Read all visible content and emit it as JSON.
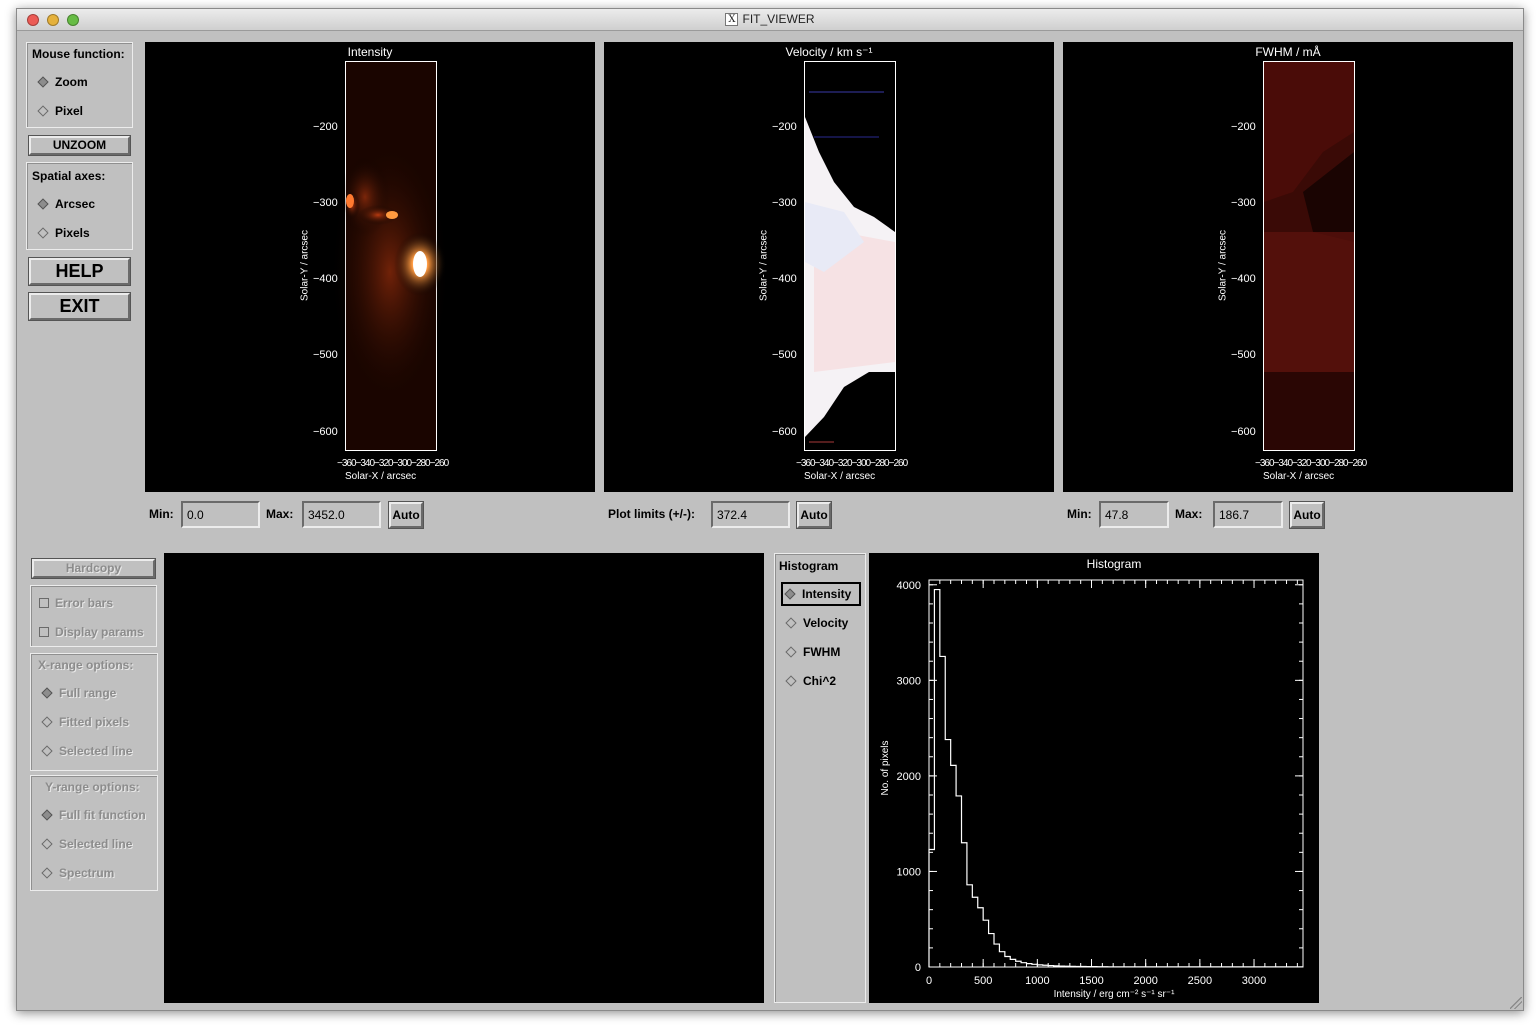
{
  "window": {
    "title": "FIT_VIEWER"
  },
  "mouse_function": {
    "label": "Mouse function:",
    "options": [
      {
        "label": "Zoom",
        "selected": true
      },
      {
        "label": "Pixel",
        "selected": false
      }
    ]
  },
  "unzoom_label": "UNZOOM",
  "spatial_axes": {
    "label": "Spatial axes:",
    "options": [
      {
        "label": "Arcsec",
        "selected": true
      },
      {
        "label": "Pixels",
        "selected": false
      }
    ]
  },
  "help_label": "HELP",
  "exit_label": "EXIT",
  "panels": [
    {
      "title": "Intensity",
      "ylabel": "Solar-Y / arcsec",
      "xlabel": "Solar-X / arcsec",
      "xticks": "−360−340−320−300−280−260",
      "yticks": [
        "−200",
        "−300",
        "−400",
        "−500",
        "−600"
      ]
    },
    {
      "title": "Velocity  /  km s⁻¹",
      "ylabel": "Solar-Y / arcsec",
      "xlabel": "Solar-X / arcsec",
      "xticks": "−360−340−320−300−280−260",
      "yticks": [
        "−200",
        "−300",
        "−400",
        "−500",
        "−600"
      ]
    },
    {
      "title": "FWHM  /  mÅ",
      "ylabel": "Solar-Y / arcsec",
      "xlabel": "Solar-X / arcsec",
      "xticks": "−360−340−320−300−280−260",
      "yticks": [
        "−200",
        "−300",
        "−400",
        "−500",
        "−600"
      ]
    }
  ],
  "controls": {
    "intensity": {
      "min_label": "Min:",
      "min_value": "0.0",
      "max_label": "Max:",
      "max_value": "3452.0",
      "auto_label": "Auto"
    },
    "velocity": {
      "limits_label": "Plot limits (+/-):",
      "limits_value": "372.4",
      "auto_label": "Auto"
    },
    "fwhm": {
      "min_label": "Min:",
      "min_value": "47.8",
      "max_label": "Max:",
      "max_value": "186.7",
      "auto_label": "Auto"
    }
  },
  "lower_left": {
    "hardcopy_label": "Hardcopy",
    "error_bars_label": "Error bars",
    "display_params_label": "Display params",
    "xrange": {
      "label": "X-range options:",
      "options": [
        "Full range",
        "Fitted pixels",
        "Selected line"
      ],
      "selected": 0
    },
    "yrange": {
      "label": "Y-range options:",
      "options": [
        "Full fit function",
        "Selected line",
        "Spectrum"
      ],
      "selected": 0
    }
  },
  "histogram_options": {
    "label": "Histogram",
    "options": [
      "Intensity",
      "Velocity",
      "FWHM",
      "Chi^2"
    ],
    "selected": 0
  },
  "chart_data": {
    "type": "histogram",
    "title": "Histogram",
    "xlabel": "Intensity / erg cm⁻² s⁻¹ sr⁻¹",
    "ylabel": "No. of pixels",
    "xlim": [
      0,
      3452
    ],
    "ylim": [
      0,
      4050
    ],
    "xticks": [
      0,
      500,
      1000,
      1500,
      2000,
      2500,
      3000
    ],
    "yticks": [
      0,
      1000,
      2000,
      3000,
      4000
    ],
    "bin_width": 50,
    "values": [
      1230,
      3950,
      3250,
      2380,
      2110,
      1790,
      1300,
      860,
      730,
      620,
      490,
      350,
      240,
      160,
      110,
      80,
      60,
      45,
      35,
      28,
      22,
      18,
      15,
      12,
      10,
      8,
      7,
      6,
      5,
      4,
      4,
      3,
      3,
      2,
      2,
      2,
      2,
      1,
      1,
      1,
      1,
      1,
      1,
      1,
      1,
      1,
      1,
      1,
      1,
      1,
      1,
      1,
      1,
      1,
      1,
      1,
      1,
      1,
      1,
      1,
      1,
      1,
      1,
      1,
      1,
      1,
      1,
      1,
      1
    ]
  }
}
